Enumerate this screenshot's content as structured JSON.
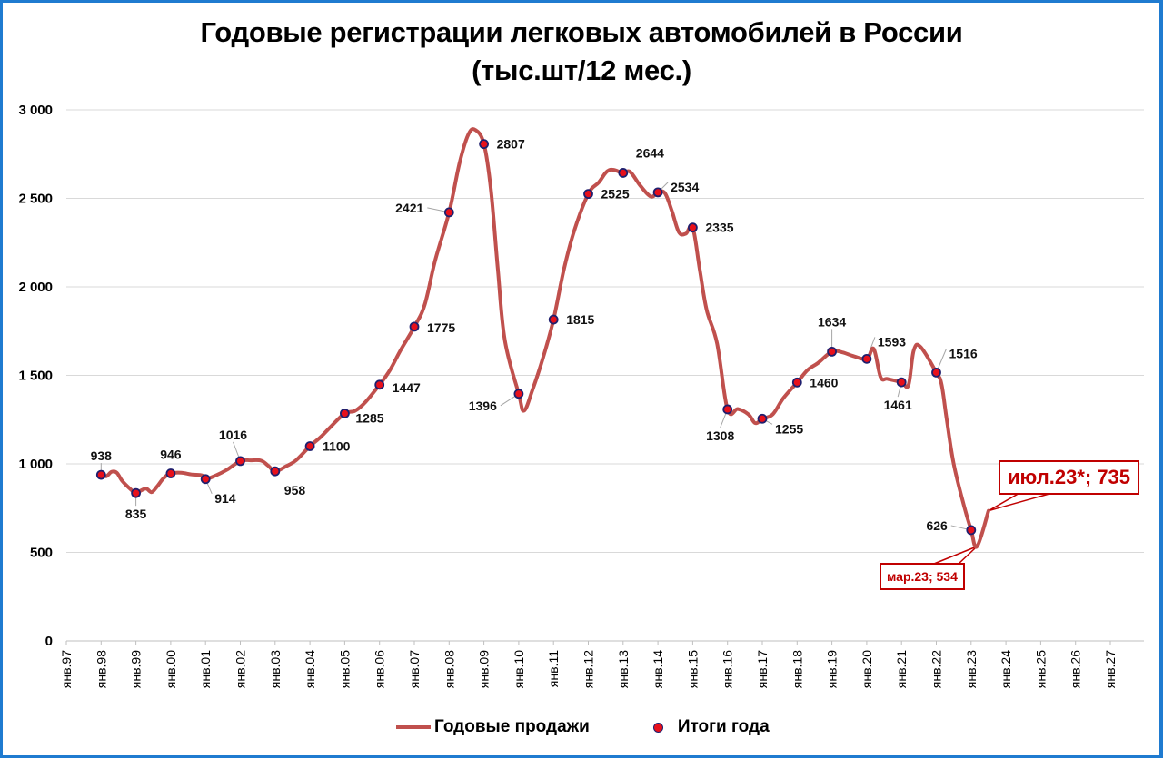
{
  "chart_data": {
    "type": "line",
    "title": "Годовые регистрации легковых автомобилей в России",
    "subtitle": "(тыс.шт/12 мес.)",
    "xlabel": "",
    "ylabel": "",
    "ylim": [
      0,
      3000
    ],
    "y_ticks": [
      "0",
      "500",
      "1 000",
      "1 500",
      "2 000",
      "2 500",
      "3 000"
    ],
    "x_ticks": [
      "янв.97",
      "янв.98",
      "янв.99",
      "янв.00",
      "янв.01",
      "янв.02",
      "янв.03",
      "янв.04",
      "янв.05",
      "янв.06",
      "янв.07",
      "янв.08",
      "янв.09",
      "янв.10",
      "янв.11",
      "янв.12",
      "янв.13",
      "янв.14",
      "янв.15",
      "янв.16",
      "янв.17",
      "янв.18",
      "янв.19",
      "янв.20",
      "янв.21",
      "янв.22",
      "янв.23",
      "янв.24",
      "янв.25",
      "янв.26",
      "янв.27"
    ],
    "grid": true,
    "legend_position": "bottom",
    "series": [
      {
        "name": "Годовые продажи",
        "type": "line",
        "color": "#c0504d",
        "points": [
          [
            1998.0,
            938
          ],
          [
            1998.15,
            930
          ],
          [
            1998.3,
            955
          ],
          [
            1998.45,
            950
          ],
          [
            1998.6,
            905
          ],
          [
            1998.8,
            865
          ],
          [
            1999.0,
            835
          ],
          [
            1999.15,
            850
          ],
          [
            1999.3,
            860
          ],
          [
            1999.45,
            840
          ],
          [
            1999.6,
            870
          ],
          [
            1999.8,
            920
          ],
          [
            2000.0,
            946
          ],
          [
            2000.3,
            950
          ],
          [
            2000.6,
            940
          ],
          [
            2000.9,
            935
          ],
          [
            2001.0,
            914
          ],
          [
            2001.3,
            935
          ],
          [
            2001.6,
            965
          ],
          [
            2002.0,
            1016
          ],
          [
            2002.3,
            1020
          ],
          [
            2002.6,
            1018
          ],
          [
            2002.8,
            990
          ],
          [
            2003.0,
            958
          ],
          [
            2003.3,
            985
          ],
          [
            2003.6,
            1020
          ],
          [
            2004.0,
            1100
          ],
          [
            2004.3,
            1150
          ],
          [
            2004.6,
            1210
          ],
          [
            2005.0,
            1285
          ],
          [
            2005.3,
            1300
          ],
          [
            2005.6,
            1350
          ],
          [
            2006.0,
            1447
          ],
          [
            2006.3,
            1530
          ],
          [
            2006.6,
            1640
          ],
          [
            2007.0,
            1775
          ],
          [
            2007.3,
            1900
          ],
          [
            2007.6,
            2150
          ],
          [
            2008.0,
            2421
          ],
          [
            2008.3,
            2700
          ],
          [
            2008.55,
            2860
          ],
          [
            2008.75,
            2887
          ],
          [
            2009.0,
            2807
          ],
          [
            2009.2,
            2550
          ],
          [
            2009.4,
            2100
          ],
          [
            2009.6,
            1700
          ],
          [
            2010.0,
            1396
          ],
          [
            2010.15,
            1300
          ],
          [
            2010.4,
            1420
          ],
          [
            2010.7,
            1600
          ],
          [
            2011.0,
            1815
          ],
          [
            2011.3,
            2100
          ],
          [
            2011.6,
            2320
          ],
          [
            2012.0,
            2525
          ],
          [
            2012.3,
            2590
          ],
          [
            2012.6,
            2660
          ],
          [
            2013.0,
            2644
          ],
          [
            2013.2,
            2650
          ],
          [
            2013.5,
            2570
          ],
          [
            2013.8,
            2510
          ],
          [
            2014.0,
            2534
          ],
          [
            2014.2,
            2530
          ],
          [
            2014.4,
            2430
          ],
          [
            2014.6,
            2310
          ],
          [
            2014.8,
            2300
          ],
          [
            2015.0,
            2335
          ],
          [
            2015.2,
            2100
          ],
          [
            2015.4,
            1870
          ],
          [
            2015.7,
            1680
          ],
          [
            2016.0,
            1308
          ],
          [
            2016.3,
            1310
          ],
          [
            2016.6,
            1280
          ],
          [
            2016.8,
            1230
          ],
          [
            2017.0,
            1255
          ],
          [
            2017.3,
            1280
          ],
          [
            2017.6,
            1370
          ],
          [
            2018.0,
            1460
          ],
          [
            2018.3,
            1530
          ],
          [
            2018.6,
            1570
          ],
          [
            2019.0,
            1634
          ],
          [
            2019.3,
            1630
          ],
          [
            2019.6,
            1610
          ],
          [
            2020.0,
            1593
          ],
          [
            2020.2,
            1650
          ],
          [
            2020.4,
            1490
          ],
          [
            2020.6,
            1480
          ],
          [
            2021.0,
            1461
          ],
          [
            2021.2,
            1445
          ],
          [
            2021.35,
            1640
          ],
          [
            2021.55,
            1660
          ],
          [
            2022.0,
            1516
          ],
          [
            2022.15,
            1450
          ],
          [
            2022.3,
            1250
          ],
          [
            2022.5,
            1000
          ],
          [
            2022.8,
            760
          ],
          [
            2023.0,
            626
          ],
          [
            2023.17,
            534
          ],
          [
            2023.5,
            735
          ]
        ]
      },
      {
        "name": "Итоги года",
        "type": "scatter",
        "marker_fill": "#e8101b",
        "marker_edge": "#1f1f6e",
        "points": [
          {
            "x": "янв.98",
            "year": 1997,
            "value": 938
          },
          {
            "x": "янв.99",
            "year": 1998,
            "value": 835
          },
          {
            "x": "янв.00",
            "year": 1999,
            "value": 946
          },
          {
            "x": "янв.01",
            "year": 2000,
            "value": 914
          },
          {
            "x": "янв.02",
            "year": 2001,
            "value": 1016
          },
          {
            "x": "янв.03",
            "year": 2002,
            "value": 958
          },
          {
            "x": "янв.04",
            "year": 2003,
            "value": 1100
          },
          {
            "x": "янв.05",
            "year": 2004,
            "value": 1285
          },
          {
            "x": "янв.06",
            "year": 2005,
            "value": 1447
          },
          {
            "x": "янв.07",
            "year": 2006,
            "value": 1775
          },
          {
            "x": "янв.08",
            "year": 2007,
            "value": 2421
          },
          {
            "x": "янв.09",
            "year": 2008,
            "value": 2807
          },
          {
            "x": "янв.10",
            "year": 2009,
            "value": 1396
          },
          {
            "x": "янв.11",
            "year": 2010,
            "value": 1815
          },
          {
            "x": "янв.12",
            "year": 2011,
            "value": 2525
          },
          {
            "x": "янв.13",
            "year": 2012,
            "value": 2644
          },
          {
            "x": "янв.14",
            "year": 2013,
            "value": 2534
          },
          {
            "x": "янв.15",
            "year": 2014,
            "value": 2335
          },
          {
            "x": "янв.16",
            "year": 2015,
            "value": 1308
          },
          {
            "x": "янв.17",
            "year": 2016,
            "value": 1255
          },
          {
            "x": "янв.18",
            "year": 2017,
            "value": 1460
          },
          {
            "x": "янв.19",
            "year": 2018,
            "value": 1634
          },
          {
            "x": "янв.20",
            "year": 2019,
            "value": 1593
          },
          {
            "x": "янв.21",
            "year": 2020,
            "value": 1461
          },
          {
            "x": "янв.22",
            "year": 2021,
            "value": 1516
          },
          {
            "x": "янв.23",
            "year": 2022,
            "value": 626
          }
        ]
      }
    ],
    "annotations": [
      {
        "text": "июл.23*; 735",
        "x": "июл.23",
        "value": 735,
        "style": "large-red-callout"
      },
      {
        "text": "мар.23; 534",
        "x": "мар.23",
        "value": 534,
        "style": "small-red-callout"
      }
    ]
  },
  "legend": {
    "line_label": "Годовые продажи",
    "dot_label": "Итоги года"
  }
}
